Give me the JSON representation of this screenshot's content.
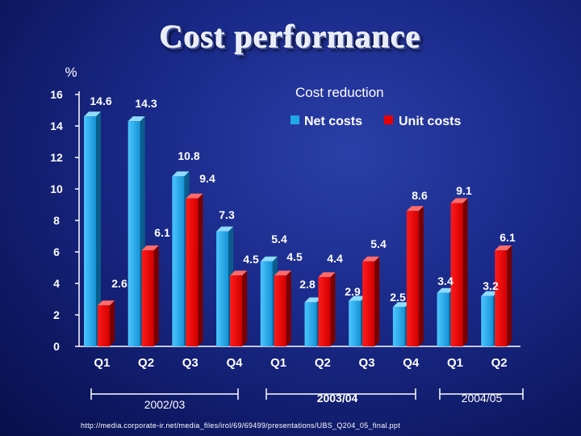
{
  "page": {
    "title": "Cost performance",
    "subtitle": "Cost reduction",
    "footer_url": "http://media.corporate-ir.net/media_files/irol/69/69499/presentations/UBS_Q204_05_final.ppt"
  },
  "chart_data": {
    "type": "bar",
    "title": "Cost performance",
    "subtitle": "Cost reduction",
    "ylabel": "%",
    "xlabel": "",
    "ylim": [
      0,
      16
    ],
    "yticks": [
      0,
      2,
      4,
      6,
      8,
      10,
      12,
      14,
      16
    ],
    "legend_position": "top-right",
    "categories": [
      "Q1",
      "Q2",
      "Q3",
      "Q4",
      "Q1",
      "Q2",
      "Q3",
      "Q4",
      "Q1",
      "Q2"
    ],
    "groups": [
      {
        "label": "2002/03",
        "categories": [
          "Q1",
          "Q2",
          "Q3",
          "Q4"
        ]
      },
      {
        "label": "2003/04",
        "categories": [
          "Q1",
          "Q2",
          "Q3",
          "Q4"
        ]
      },
      {
        "label": "2004/05",
        "categories": [
          "Q1",
          "Q2"
        ]
      }
    ],
    "series": [
      {
        "name": "Net costs",
        "color": "#1fa8e6",
        "values": [
          14.6,
          14.3,
          10.8,
          7.3,
          5.4,
          2.8,
          2.9,
          2.5,
          3.4,
          3.2
        ]
      },
      {
        "name": "Unit costs",
        "color": "#e60000",
        "values": [
          2.6,
          6.1,
          9.4,
          4.5,
          4.5,
          4.4,
          5.4,
          8.6,
          9.1,
          6.1
        ]
      }
    ],
    "data_labels": [
      [
        "14.6",
        "14.3",
        "10.8",
        "7.3",
        "5.4",
        "2.8",
        "2.9",
        "2.5",
        "3.4",
        "3.2"
      ],
      [
        "2.6",
        "6.1",
        "9.4",
        "4.5",
        "4.5",
        "4.4",
        "5.4",
        "8.6",
        "9.1",
        "6.1"
      ]
    ]
  }
}
